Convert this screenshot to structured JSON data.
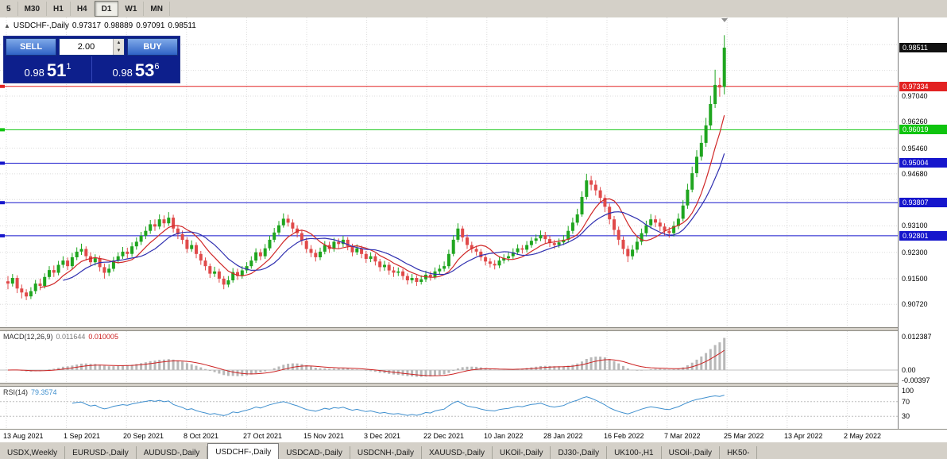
{
  "toolbar": {
    "timeframes": [
      "5",
      "M30",
      "H1",
      "H4",
      "D1",
      "W1",
      "MN"
    ],
    "active": "D1"
  },
  "chart_header": {
    "toggle": "▲",
    "symbol": "USDCHF-,Daily",
    "open": "0.97317",
    "high": "0.98889",
    "low": "0.97091",
    "close": "0.98511"
  },
  "one_click": {
    "sell_label": "SELL",
    "buy_label": "BUY",
    "volume": "2.00",
    "sell_price": {
      "base": "0.98",
      "big": "51",
      "sup": "1"
    },
    "buy_price": {
      "base": "0.98",
      "big": "53",
      "sup": "6"
    }
  },
  "price_axis": {
    "plain_labels": [
      "0.97040",
      "0.96260",
      "0.95460",
      "0.94680",
      "0.93100",
      "0.92300",
      "0.91500",
      "0.90720"
    ],
    "badges": [
      {
        "text": "0.98511",
        "color": "#111111",
        "type": "current"
      },
      {
        "text": "0.97334",
        "color": "#e22222",
        "type": "hline"
      },
      {
        "text": "0.96019",
        "color": "#0fc40f",
        "type": "hline"
      },
      {
        "text": "0.95004",
        "color": "#1616cc",
        "type": "hline"
      },
      {
        "text": "0.93807",
        "color": "#1616cc",
        "type": "hline"
      },
      {
        "text": "0.92801",
        "color": "#1616cc",
        "type": "hline"
      }
    ]
  },
  "time_axis": {
    "labels": [
      "13 Aug 2021",
      "1 Sep 2021",
      "20 Sep 2021",
      "8 Oct 2021",
      "27 Oct 2021",
      "15 Nov 2021",
      "3 Dec 2021",
      "22 Dec 2021",
      "10 Jan 2022",
      "28 Jan 2022",
      "16 Feb 2022",
      "7 Mar 2022",
      "25 Mar 2022",
      "13 Apr 2022",
      "2 May 2022"
    ]
  },
  "indicators": {
    "macd": {
      "name": "MACD(12,26,9)",
      "value_main": "0.011644",
      "value_signal": "0.010005",
      "axis_labels": [
        "0.012387",
        "0.00",
        "-0.00397"
      ]
    },
    "rsi": {
      "name": "RSI(14)",
      "value": "79.3574",
      "axis_labels": [
        "100",
        "70",
        "30"
      ]
    }
  },
  "tabs": {
    "items": [
      "USDX,Weekly",
      "EURUSD-,Daily",
      "AUDUSD-,Daily",
      "USDCHF-,Daily",
      "USDCAD-,Daily",
      "USDCNH-,Daily",
      "XAUUSD-,Daily",
      "UKOil-,Daily",
      "DJ30-,Daily",
      "UK100-,H1",
      "USOil-,Daily",
      "HK50-"
    ],
    "active": "USDCHF-,Daily"
  },
  "colors": {
    "bull": "#1fa51f",
    "bear": "#e04a4a",
    "ma_fast": "#d02828",
    "ma_slow": "#3030b0",
    "macd_hist": "#b8b8b8",
    "macd_signal": "#cc2222",
    "rsi_line": "#3f8fce",
    "grid": "#dcdcdc"
  },
  "chart_data": {
    "type": "candlestick",
    "symbol": "USDCHF-",
    "timeframe": "Daily",
    "y_range": [
      0.8998,
      0.9943
    ],
    "grid_prices": [
      0.986,
      0.9782,
      0.9704,
      0.9626,
      0.9546,
      0.9468,
      0.939,
      0.931,
      0.923,
      0.915,
      0.9072
    ],
    "horizontal_lines": [
      {
        "price": 0.97334,
        "color": "#e22222"
      },
      {
        "price": 0.96019,
        "color": "#0fc40f"
      },
      {
        "price": 0.95004,
        "color": "#1616cc"
      },
      {
        "price": 0.93807,
        "color": "#1616cc"
      },
      {
        "price": 0.92801,
        "color": "#1616cc"
      }
    ],
    "candles": [
      [
        0.9142,
        0.9158,
        0.9118,
        0.9135
      ],
      [
        0.9135,
        0.9164,
        0.9126,
        0.9152
      ],
      [
        0.9152,
        0.916,
        0.9106,
        0.912
      ],
      [
        0.912,
        0.9132,
        0.909,
        0.9108
      ],
      [
        0.9108,
        0.9118,
        0.9085,
        0.9096
      ],
      [
        0.9096,
        0.9124,
        0.9088,
        0.9112
      ],
      [
        0.9112,
        0.9146,
        0.9104,
        0.9135
      ],
      [
        0.9135,
        0.915,
        0.9115,
        0.9128
      ],
      [
        0.9128,
        0.9166,
        0.912,
        0.9155
      ],
      [
        0.9155,
        0.9188,
        0.9148,
        0.9176
      ],
      [
        0.9176,
        0.919,
        0.9155,
        0.9168
      ],
      [
        0.9168,
        0.9204,
        0.916,
        0.9192
      ],
      [
        0.9192,
        0.9218,
        0.9183,
        0.9205
      ],
      [
        0.9205,
        0.9214,
        0.9176,
        0.9188
      ],
      [
        0.9188,
        0.9228,
        0.918,
        0.9215
      ],
      [
        0.9215,
        0.9245,
        0.9206,
        0.9232
      ],
      [
        0.9232,
        0.9256,
        0.9222,
        0.924
      ],
      [
        0.924,
        0.9248,
        0.9205,
        0.9218
      ],
      [
        0.9218,
        0.923,
        0.9188,
        0.92
      ],
      [
        0.92,
        0.9224,
        0.919,
        0.9212
      ],
      [
        0.9212,
        0.922,
        0.9172,
        0.9185
      ],
      [
        0.9185,
        0.9196,
        0.915,
        0.9168
      ],
      [
        0.9168,
        0.9194,
        0.9158,
        0.918
      ],
      [
        0.918,
        0.9216,
        0.9172,
        0.9205
      ],
      [
        0.9205,
        0.923,
        0.9196,
        0.9218
      ],
      [
        0.9218,
        0.9246,
        0.921,
        0.9232
      ],
      [
        0.9232,
        0.9244,
        0.9212,
        0.9225
      ],
      [
        0.9225,
        0.926,
        0.9216,
        0.9248
      ],
      [
        0.9248,
        0.9275,
        0.9238,
        0.9262
      ],
      [
        0.9262,
        0.9292,
        0.9252,
        0.928
      ],
      [
        0.928,
        0.9308,
        0.927,
        0.9295
      ],
      [
        0.9295,
        0.9328,
        0.9286,
        0.9315
      ],
      [
        0.9315,
        0.933,
        0.9295,
        0.9308
      ],
      [
        0.9308,
        0.9345,
        0.93,
        0.933
      ],
      [
        0.933,
        0.9342,
        0.9305,
        0.9318
      ],
      [
        0.9318,
        0.9352,
        0.931,
        0.9335
      ],
      [
        0.9335,
        0.9344,
        0.929,
        0.9302
      ],
      [
        0.9302,
        0.9312,
        0.927,
        0.9285
      ],
      [
        0.9285,
        0.9296,
        0.9255,
        0.9268
      ],
      [
        0.9268,
        0.9276,
        0.9228,
        0.924
      ],
      [
        0.924,
        0.9266,
        0.9232,
        0.9252
      ],
      [
        0.9252,
        0.926,
        0.9212,
        0.9225
      ],
      [
        0.9225,
        0.9234,
        0.9192,
        0.9205
      ],
      [
        0.9205,
        0.9214,
        0.9175,
        0.9188
      ],
      [
        0.9188,
        0.9196,
        0.9152,
        0.9165
      ],
      [
        0.9165,
        0.9186,
        0.9155,
        0.9172
      ],
      [
        0.9172,
        0.918,
        0.9138,
        0.915
      ],
      [
        0.915,
        0.9158,
        0.9118,
        0.9132
      ],
      [
        0.9132,
        0.9158,
        0.9124,
        0.9145
      ],
      [
        0.9145,
        0.9182,
        0.9138,
        0.917
      ],
      [
        0.917,
        0.918,
        0.9146,
        0.9158
      ],
      [
        0.9158,
        0.9188,
        0.915,
        0.9175
      ],
      [
        0.9175,
        0.92,
        0.9166,
        0.9188
      ],
      [
        0.9188,
        0.9218,
        0.918,
        0.9205
      ],
      [
        0.9205,
        0.9242,
        0.9198,
        0.923
      ],
      [
        0.923,
        0.924,
        0.9206,
        0.9218
      ],
      [
        0.9218,
        0.9255,
        0.921,
        0.9242
      ],
      [
        0.9242,
        0.928,
        0.9235,
        0.9268
      ],
      [
        0.9268,
        0.9304,
        0.926,
        0.929
      ],
      [
        0.929,
        0.9325,
        0.9282,
        0.9312
      ],
      [
        0.9312,
        0.9348,
        0.9305,
        0.9332
      ],
      [
        0.9332,
        0.9344,
        0.9308,
        0.932
      ],
      [
        0.932,
        0.933,
        0.929,
        0.9302
      ],
      [
        0.9302,
        0.9312,
        0.9275,
        0.9288
      ],
      [
        0.9288,
        0.9296,
        0.9252,
        0.9265
      ],
      [
        0.9265,
        0.9274,
        0.9228,
        0.924
      ],
      [
        0.924,
        0.9252,
        0.9215,
        0.9228
      ],
      [
        0.9228,
        0.9238,
        0.9202,
        0.9215
      ],
      [
        0.9215,
        0.9244,
        0.9206,
        0.9232
      ],
      [
        0.9232,
        0.9264,
        0.9224,
        0.9252
      ],
      [
        0.9252,
        0.9262,
        0.9228,
        0.924
      ],
      [
        0.924,
        0.9274,
        0.9232,
        0.9262
      ],
      [
        0.9262,
        0.9272,
        0.9242,
        0.9255
      ],
      [
        0.9255,
        0.928,
        0.9246,
        0.9268
      ],
      [
        0.9268,
        0.9276,
        0.9236,
        0.9248
      ],
      [
        0.9248,
        0.9256,
        0.9218,
        0.923
      ],
      [
        0.923,
        0.9254,
        0.9222,
        0.9242
      ],
      [
        0.9242,
        0.925,
        0.9212,
        0.9225
      ],
      [
        0.9225,
        0.9234,
        0.9198,
        0.921
      ],
      [
        0.921,
        0.923,
        0.92,
        0.9218
      ],
      [
        0.9218,
        0.9226,
        0.919,
        0.9202
      ],
      [
        0.9202,
        0.921,
        0.9172,
        0.9185
      ],
      [
        0.9185,
        0.9204,
        0.9174,
        0.9192
      ],
      [
        0.9192,
        0.92,
        0.9162,
        0.9175
      ],
      [
        0.9175,
        0.9186,
        0.9155,
        0.9168
      ],
      [
        0.9168,
        0.9184,
        0.9158,
        0.9172
      ],
      [
        0.9172,
        0.918,
        0.9146,
        0.9158
      ],
      [
        0.9158,
        0.9166,
        0.9132,
        0.9145
      ],
      [
        0.9145,
        0.9164,
        0.9136,
        0.9152
      ],
      [
        0.9152,
        0.916,
        0.9128,
        0.914
      ],
      [
        0.914,
        0.916,
        0.9132,
        0.9148
      ],
      [
        0.9148,
        0.9174,
        0.914,
        0.9162
      ],
      [
        0.9162,
        0.9172,
        0.9144,
        0.9155
      ],
      [
        0.9155,
        0.9184,
        0.9148,
        0.9172
      ],
      [
        0.9172,
        0.9192,
        0.9164,
        0.918
      ],
      [
        0.918,
        0.9202,
        0.9172,
        0.9188
      ],
      [
        0.9188,
        0.9238,
        0.918,
        0.9225
      ],
      [
        0.9225,
        0.9282,
        0.9218,
        0.9268
      ],
      [
        0.9268,
        0.9318,
        0.926,
        0.9302
      ],
      [
        0.9302,
        0.931,
        0.9262,
        0.9275
      ],
      [
        0.9275,
        0.9284,
        0.924,
        0.9252
      ],
      [
        0.9252,
        0.9262,
        0.9228,
        0.924
      ],
      [
        0.924,
        0.925,
        0.922,
        0.9232
      ],
      [
        0.9232,
        0.924,
        0.9204,
        0.9215
      ],
      [
        0.9215,
        0.9224,
        0.919,
        0.9202
      ],
      [
        0.9202,
        0.9212,
        0.9184,
        0.9195
      ],
      [
        0.9195,
        0.9206,
        0.9178,
        0.919
      ],
      [
        0.919,
        0.9216,
        0.9182,
        0.9205
      ],
      [
        0.9205,
        0.9224,
        0.9196,
        0.9212
      ],
      [
        0.9212,
        0.923,
        0.9202,
        0.9218
      ],
      [
        0.9218,
        0.9242,
        0.921,
        0.923
      ],
      [
        0.923,
        0.9254,
        0.9222,
        0.9242
      ],
      [
        0.9242,
        0.9252,
        0.9226,
        0.9238
      ],
      [
        0.9238,
        0.9264,
        0.923,
        0.9252
      ],
      [
        0.9252,
        0.9276,
        0.9244,
        0.9265
      ],
      [
        0.9265,
        0.9284,
        0.9256,
        0.9272
      ],
      [
        0.9272,
        0.9296,
        0.9264,
        0.9282
      ],
      [
        0.9282,
        0.9292,
        0.9258,
        0.927
      ],
      [
        0.927,
        0.928,
        0.9246,
        0.9258
      ],
      [
        0.9258,
        0.9268,
        0.924,
        0.9252
      ],
      [
        0.9252,
        0.9272,
        0.9244,
        0.926
      ],
      [
        0.926,
        0.9282,
        0.9252,
        0.9268
      ],
      [
        0.9268,
        0.931,
        0.926,
        0.9295
      ],
      [
        0.9295,
        0.9335,
        0.9286,
        0.932
      ],
      [
        0.932,
        0.9362,
        0.9312,
        0.9345
      ],
      [
        0.9345,
        0.9415,
        0.9338,
        0.9398
      ],
      [
        0.9398,
        0.9468,
        0.939,
        0.9448
      ],
      [
        0.9448,
        0.9462,
        0.9418,
        0.9435
      ],
      [
        0.9435,
        0.9448,
        0.9402,
        0.9418
      ],
      [
        0.9418,
        0.9428,
        0.938,
        0.9395
      ],
      [
        0.9395,
        0.9405,
        0.9352,
        0.9368
      ],
      [
        0.9368,
        0.9378,
        0.9315,
        0.933
      ],
      [
        0.933,
        0.934,
        0.9282,
        0.9298
      ],
      [
        0.9298,
        0.9308,
        0.9252,
        0.9268
      ],
      [
        0.9268,
        0.9278,
        0.9224,
        0.924
      ],
      [
        0.924,
        0.925,
        0.92,
        0.9218
      ],
      [
        0.9218,
        0.9252,
        0.9208,
        0.9238
      ],
      [
        0.9238,
        0.9276,
        0.9228,
        0.9262
      ],
      [
        0.9262,
        0.9302,
        0.9252,
        0.9288
      ],
      [
        0.9288,
        0.9326,
        0.9278,
        0.9312
      ],
      [
        0.9312,
        0.9346,
        0.9302,
        0.933
      ],
      [
        0.933,
        0.9342,
        0.9306,
        0.932
      ],
      [
        0.932,
        0.9332,
        0.9294,
        0.9308
      ],
      [
        0.9308,
        0.9318,
        0.928,
        0.9295
      ],
      [
        0.9295,
        0.9306,
        0.9274,
        0.9288
      ],
      [
        0.9288,
        0.9324,
        0.9278,
        0.931
      ],
      [
        0.931,
        0.9348,
        0.93,
        0.9332
      ],
      [
        0.9332,
        0.9388,
        0.9324,
        0.9372
      ],
      [
        0.9372,
        0.9438,
        0.9362,
        0.942
      ],
      [
        0.942,
        0.949,
        0.9412,
        0.947
      ],
      [
        0.947,
        0.954,
        0.9458,
        0.952
      ],
      [
        0.952,
        0.9585,
        0.9508,
        0.9562
      ],
      [
        0.9562,
        0.9638,
        0.955,
        0.9615
      ],
      [
        0.9615,
        0.9705,
        0.9602,
        0.968
      ],
      [
        0.968,
        0.9784,
        0.9668,
        0.9738
      ],
      [
        0.9738,
        0.976,
        0.9702,
        0.973
      ],
      [
        0.97317,
        0.98889,
        0.97091,
        0.98511
      ]
    ]
  }
}
